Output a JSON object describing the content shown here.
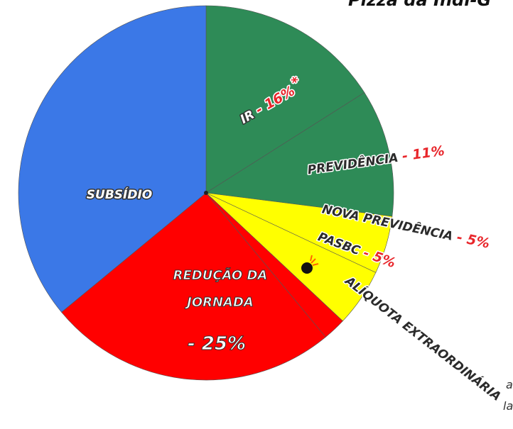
{
  "chart_data": {
    "type": "pie",
    "title": "Pizza da Indi-G",
    "categories": [
      "IR",
      "PREVIDÊNCIA",
      "NOVA PREVIDÊNCIA",
      "PASBC",
      "ALÍQUOTA EXTRAORDINÁRIA",
      "REDUÇÃO DA JORNADA",
      "SUBSÍDIO"
    ],
    "values": [
      16,
      11,
      5,
      5,
      2,
      25,
      36
    ],
    "value_labels": [
      "- 16%",
      "- 11%",
      "- 5%",
      "- 5%",
      null,
      "- 25%",
      null
    ],
    "colors": [
      "#2e8b57",
      "#2e8b57",
      "#ffff00",
      "#ffff00",
      "#ff0000",
      "#ff0000",
      "#3b78e7"
    ],
    "annotations": [
      "*",
      "a",
      "la"
    ]
  }
}
